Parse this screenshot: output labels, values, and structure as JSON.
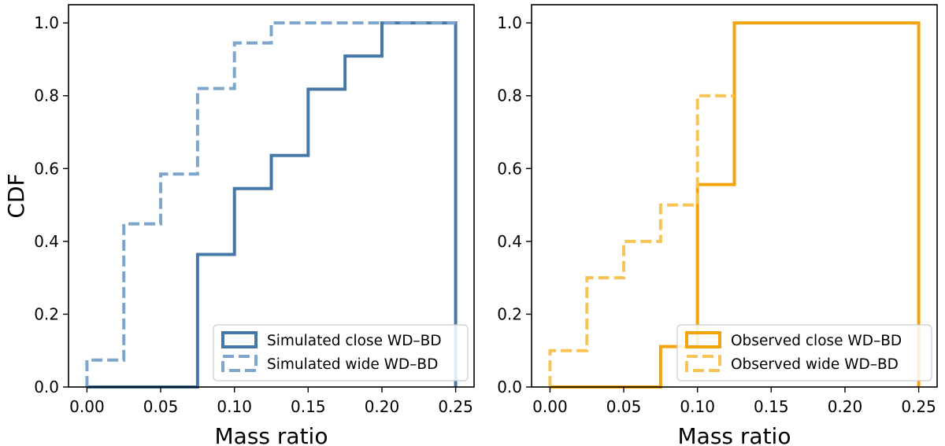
{
  "chart_data": [
    {
      "type": "step",
      "panel": "left",
      "xlabel": "Mass ratio",
      "ylabel": "CDF",
      "xlim": [
        -0.0125,
        0.2625
      ],
      "ylim": [
        0.0,
        1.05
      ],
      "xticks": [
        "0.00",
        "0.05",
        "0.10",
        "0.15",
        "0.20",
        "0.25"
      ],
      "yticks": [
        "0.0",
        "0.2",
        "0.4",
        "0.6",
        "0.8",
        "1.0"
      ],
      "legend_position": "lower right",
      "series": [
        {
          "name": "Simulated close WD–BD",
          "color": "#4578a8",
          "style": "solid",
          "x": [
            0.0,
            0.075,
            0.1,
            0.125,
            0.15,
            0.175,
            0.2,
            0.25
          ],
          "y": [
            0.0,
            0.364,
            0.545,
            0.636,
            0.818,
            0.909,
            1.0,
            0.0
          ]
        },
        {
          "name": "Simulated wide WD–BD",
          "color": "#7ea6cc",
          "style": "dashed",
          "x": [
            0.0,
            0.025,
            0.05,
            0.075,
            0.1,
            0.125,
            0.25
          ],
          "y": [
            0.074,
            0.448,
            0.585,
            0.82,
            0.945,
            1.0,
            1.0
          ]
        }
      ]
    },
    {
      "type": "step",
      "panel": "right",
      "xlabel": "Mass ratio",
      "ylabel": "",
      "xlim": [
        -0.0125,
        0.2625
      ],
      "ylim": [
        0.0,
        1.05
      ],
      "xticks": [
        "0.00",
        "0.05",
        "0.10",
        "0.15",
        "0.20",
        "0.25"
      ],
      "yticks": [
        "0.0",
        "0.2",
        "0.4",
        "0.6",
        "0.8",
        "1.0"
      ],
      "legend_position": "lower right",
      "series": [
        {
          "name": "Observed close WD–BD",
          "color": "#f5a30a",
          "style": "solid",
          "x": [
            0.0,
            0.075,
            0.1,
            0.125,
            0.25
          ],
          "y": [
            0.0,
            0.111,
            0.556,
            1.0,
            0.0
          ]
        },
        {
          "name": "Observed wide WD–BD",
          "color": "#f8c456",
          "style": "dashed",
          "x": [
            0.0,
            0.025,
            0.05,
            0.075,
            0.1,
            0.125
          ],
          "y": [
            0.1,
            0.3,
            0.4,
            0.5,
            0.8,
            0.8
          ]
        }
      ]
    }
  ]
}
